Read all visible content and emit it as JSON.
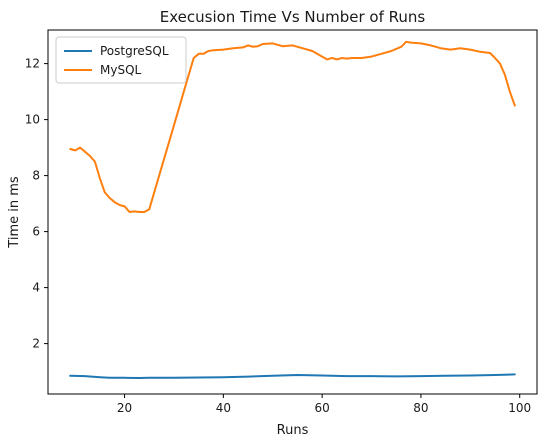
{
  "chart_data": {
    "type": "line",
    "title": "Execusion Time Vs Number of Runs",
    "xlabel": "Runs",
    "ylabel": "Time in ms",
    "xlim": [
      4.5,
      103.5
    ],
    "ylim": [
      0.2,
      13.2
    ],
    "xticks": [
      20,
      40,
      60,
      80,
      100
    ],
    "yticks": [
      2,
      4,
      6,
      8,
      10,
      12
    ],
    "grid": false,
    "legend": "top-left",
    "series": [
      {
        "name": "PostgreSQL",
        "color": "#1f77b4",
        "x": [
          9,
          12,
          15,
          17,
          20,
          23,
          25,
          30,
          35,
          40,
          45,
          50,
          55,
          60,
          65,
          70,
          75,
          80,
          85,
          90,
          95,
          99
        ],
        "y": [
          0.85,
          0.84,
          0.8,
          0.78,
          0.78,
          0.77,
          0.78,
          0.78,
          0.79,
          0.8,
          0.82,
          0.85,
          0.88,
          0.86,
          0.84,
          0.84,
          0.83,
          0.84,
          0.85,
          0.86,
          0.88,
          0.9
        ]
      },
      {
        "name": "MySQL",
        "color": "#ff7f0e",
        "x": [
          9,
          10,
          11,
          12,
          13,
          14,
          15,
          16,
          17,
          18,
          19,
          20,
          21,
          22,
          23,
          24,
          25,
          26,
          28,
          30,
          32,
          34,
          35,
          36,
          37,
          38,
          40,
          42,
          44,
          45,
          46,
          47,
          48,
          50,
          52,
          54,
          56,
          58,
          60,
          61,
          62,
          63,
          64,
          65,
          66,
          68,
          70,
          72,
          74,
          76,
          77,
          78,
          80,
          82,
          84,
          86,
          88,
          90,
          92,
          94,
          95,
          96,
          97,
          98,
          99
        ],
        "y": [
          8.95,
          8.9,
          9.0,
          8.85,
          8.7,
          8.5,
          7.9,
          7.4,
          7.2,
          7.05,
          6.95,
          6.9,
          6.7,
          6.72,
          6.7,
          6.7,
          6.8,
          7.4,
          8.6,
          9.8,
          11.0,
          12.2,
          12.35,
          12.35,
          12.45,
          12.48,
          12.5,
          12.55,
          12.58,
          12.65,
          12.6,
          12.62,
          12.7,
          12.72,
          12.62,
          12.65,
          12.55,
          12.45,
          12.25,
          12.15,
          12.2,
          12.15,
          12.2,
          12.18,
          12.2,
          12.2,
          12.25,
          12.35,
          12.45,
          12.6,
          12.78,
          12.75,
          12.72,
          12.65,
          12.55,
          12.5,
          12.55,
          12.5,
          12.42,
          12.38,
          12.2,
          12.0,
          11.6,
          11.0,
          10.5
        ]
      }
    ]
  }
}
